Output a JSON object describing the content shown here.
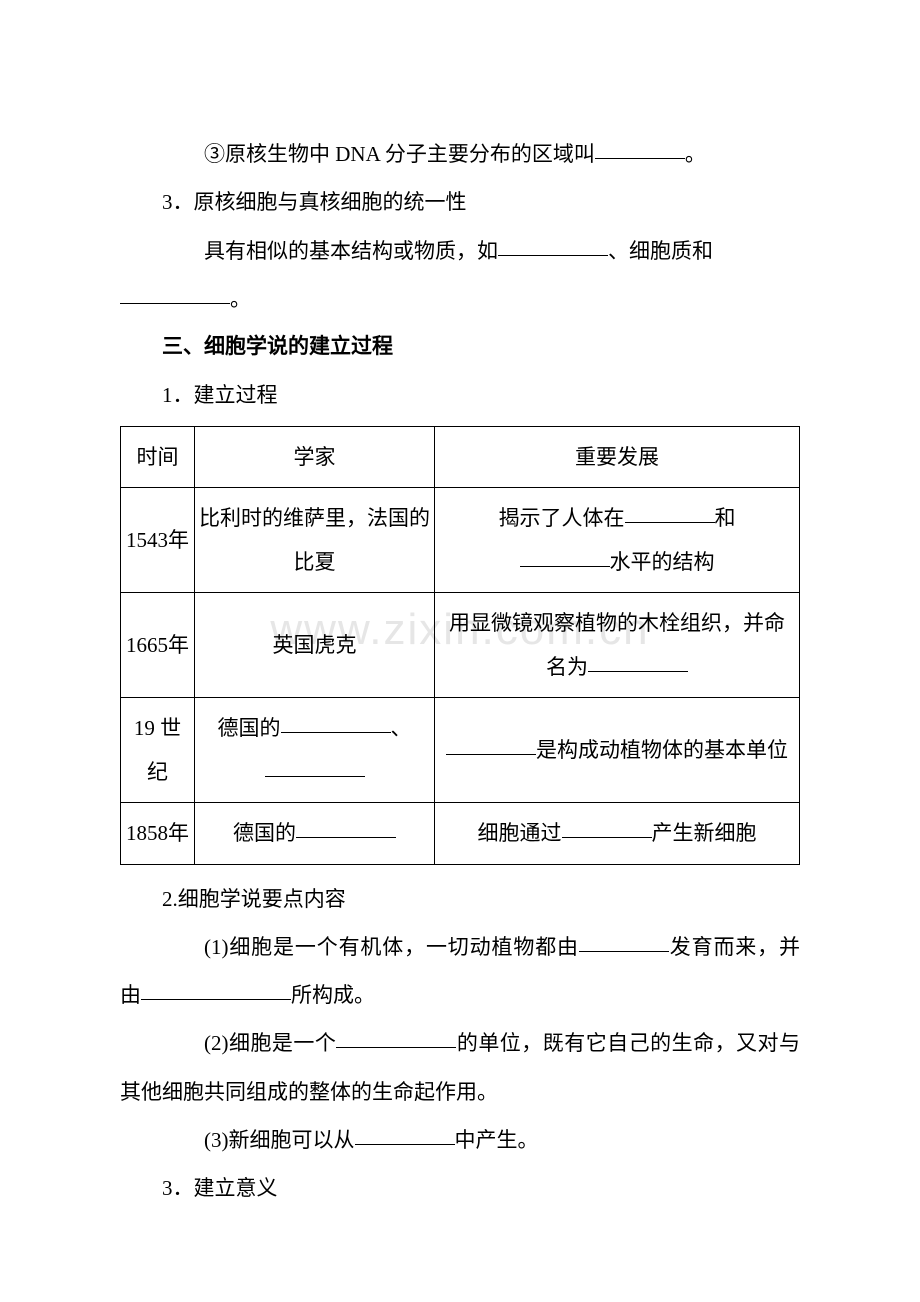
{
  "watermark": "www.zixin.com.cn",
  "p1_a": "③原核生物中 DNA 分子主要分布的区域叫",
  "p1_b": "。",
  "p2": "3．原核细胞与真核细胞的统一性",
  "p3_a": "具有相似的基本结构或物质，如",
  "p3_b": "、细胞质和",
  "p3_c": "。",
  "h3": "三、细胞学说的建立过程",
  "p4": "1．建立过程",
  "table": {
    "head": {
      "c1": "时间",
      "c2": "学家",
      "c3": "重要发展"
    },
    "r1": {
      "c1": "1543年",
      "c2": "比利时的维萨里，法国的比夏",
      "c3a": "揭示了人体在",
      "c3b": "和",
      "c3c": "水平的结构"
    },
    "r2": {
      "c1": "1665年",
      "c2": "英国虎克",
      "c3a": "用显微镜观察植物的木栓组织，并命名为"
    },
    "r3": {
      "c1": "19 世纪",
      "c2a": "德国的",
      "c2b": "、",
      "c3a": "是构成动植物体的基本单位"
    },
    "r4": {
      "c1": "1858年",
      "c2a": "德国的",
      "c3a": "细胞通过",
      "c3b": "产生新细胞"
    }
  },
  "p5": "2.细胞学说要点内容",
  "p6_a": "(1)细胞是一个有机体，一切动植物都由",
  "p6_b": "发育而来，并由",
  "p6_c": "所构成。",
  "p7_a": "(2)细胞是一个",
  "p7_b": "的单位，既有它自己的生命，又对与其他细胞共同组成的整体的生命起作用。",
  "p8_a": "(3)新细胞可以从",
  "p8_b": "中产生。",
  "p9": "3．建立意义"
}
